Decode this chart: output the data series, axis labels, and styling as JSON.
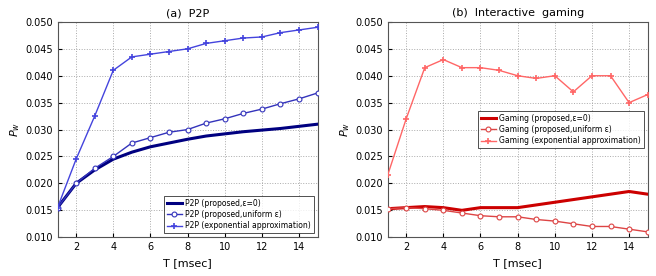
{
  "T": [
    1,
    2,
    3,
    4,
    5,
    6,
    7,
    8,
    9,
    10,
    11,
    12,
    13,
    14,
    15
  ],
  "p2p_proposed_z0": [
    0.0155,
    0.02,
    0.0225,
    0.0245,
    0.0258,
    0.0268,
    0.0275,
    0.0282,
    0.0288,
    0.0292,
    0.0296,
    0.0299,
    0.0302,
    0.0306,
    0.031
  ],
  "p2p_uniform": [
    0.0155,
    0.02,
    0.0228,
    0.025,
    0.0275,
    0.0285,
    0.0295,
    0.03,
    0.0312,
    0.032,
    0.033,
    0.0338,
    0.0348,
    0.0357,
    0.0368
  ],
  "p2p_exponential": [
    0.0155,
    0.0245,
    0.0325,
    0.041,
    0.0435,
    0.044,
    0.0445,
    0.045,
    0.046,
    0.0465,
    0.047,
    0.0472,
    0.048,
    0.0485,
    0.049
  ],
  "gaming_proposed_z0": [
    0.0153,
    0.0155,
    0.0157,
    0.0155,
    0.015,
    0.0155,
    0.0155,
    0.0155,
    0.016,
    0.0165,
    0.017,
    0.0175,
    0.018,
    0.0185,
    0.018
  ],
  "gaming_uniform": [
    0.0153,
    0.0155,
    0.0153,
    0.015,
    0.0145,
    0.014,
    0.0138,
    0.0138,
    0.0133,
    0.013,
    0.0125,
    0.012,
    0.012,
    0.0115,
    0.011
  ],
  "gaming_exponential": [
    0.0215,
    0.032,
    0.0415,
    0.043,
    0.0415,
    0.0415,
    0.041,
    0.04,
    0.0395,
    0.04,
    0.037,
    0.04,
    0.04,
    0.035,
    0.0365
  ],
  "xlabel": "T [msec]",
  "ylabel": "P_w",
  "caption_left": "(a)  P2P",
  "caption_right": "(b)  Interactive  gaming",
  "legend_p2p": [
    "P2P (proposed,ε=0)",
    "P2P (proposed,uniform ε)",
    "P2P (exponential approximation)"
  ],
  "legend_gaming": [
    "Gaming (proposed,ε=0)",
    "Gaming (proposed,uniform ε)",
    "Gaming (exponential approximation)"
  ],
  "ylim": [
    0.01,
    0.05
  ],
  "xlim": [
    1,
    15
  ],
  "yticks": [
    0.01,
    0.015,
    0.02,
    0.025,
    0.03,
    0.035,
    0.04,
    0.045,
    0.05
  ],
  "xticks": [
    2,
    4,
    6,
    8,
    10,
    12,
    14
  ],
  "blue_thick": "#000080",
  "blue_circle": "#3333BB",
  "blue_plus": "#4444DD",
  "red_thick": "#CC0000",
  "red_circle": "#DD4444",
  "red_plus": "#FF6666",
  "bg_color": "#FFFFFF",
  "grid_color": "#AAAAAA"
}
